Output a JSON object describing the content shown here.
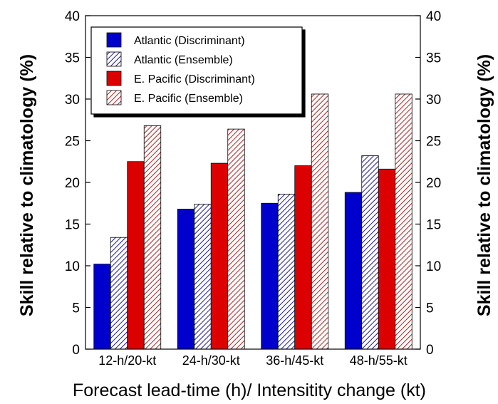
{
  "chart_data": {
    "type": "bar",
    "title": "",
    "xlabel": "Forecast lead-time (h)/ Intensitity change (kt)",
    "ylabel": "Skill relative to climatology (%)",
    "ylabel_right": "Skill relative to climatology (%)",
    "ylim": [
      0,
      40
    ],
    "yticks": [
      "0",
      "5",
      "10",
      "15",
      "20",
      "25",
      "30",
      "35",
      "40"
    ],
    "grid": false,
    "legend_position": "top-left",
    "categories": [
      "12-h/20-kt",
      "24-h/30-kt",
      "36-h/45-kt",
      "48-h/55-kt"
    ],
    "series": [
      {
        "name": "Atlantic (Discriminant)",
        "values": [
          10.2,
          16.8,
          17.5,
          18.8
        ],
        "color": "#0000cc",
        "pattern": "solid"
      },
      {
        "name": "Atlantic (Ensemble)",
        "values": [
          13.4,
          17.4,
          18.6,
          23.2
        ],
        "color": "#1a1a99",
        "pattern": "hatched"
      },
      {
        "name": "E. Pacific (Discriminant)",
        "values": [
          22.5,
          22.3,
          22.0,
          21.6
        ],
        "color": "#dd0000",
        "pattern": "solid"
      },
      {
        "name": "E. Pacific (Ensemble)",
        "values": [
          26.8,
          26.4,
          30.6,
          30.6
        ],
        "color": "#aa2222",
        "pattern": "hatched"
      }
    ]
  }
}
